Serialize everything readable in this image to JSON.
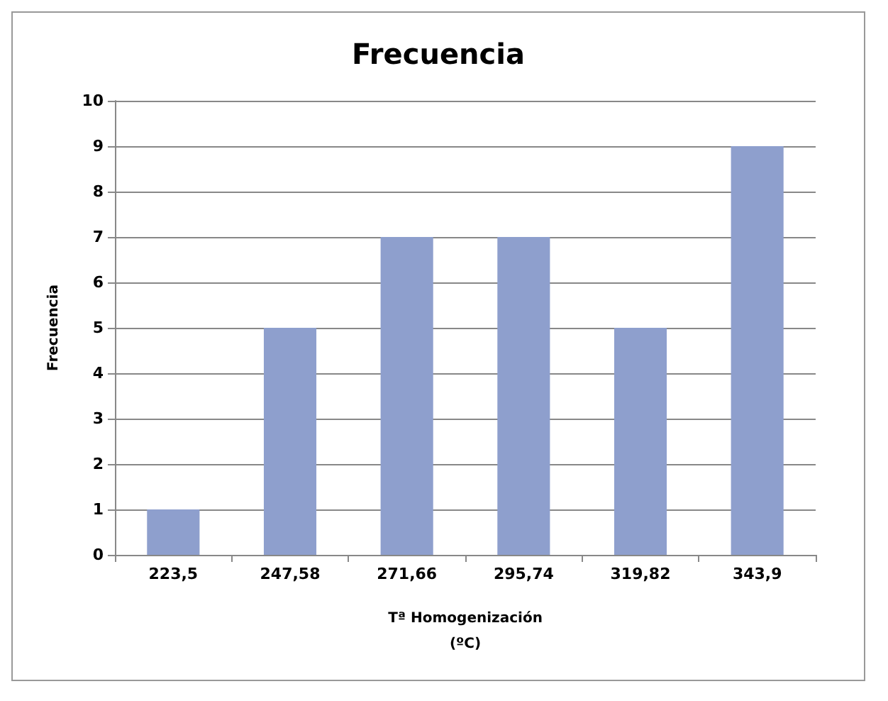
{
  "chart_data": {
    "type": "bar",
    "title": "Frecuencia",
    "xlabel": "Tª Homogenización\n(ºC)",
    "ylabel": "Frecuencia",
    "categories": [
      "223,5",
      "247,58",
      "271,66",
      "295,74",
      "319,82",
      "343,9"
    ],
    "values": [
      1,
      5,
      7,
      7,
      5,
      9
    ],
    "color": "#8e9fcd",
    "ylim": [
      0,
      10
    ],
    "yticks": [
      0,
      1,
      2,
      3,
      4,
      5,
      6,
      7,
      8,
      9,
      10
    ],
    "grid": "y"
  }
}
